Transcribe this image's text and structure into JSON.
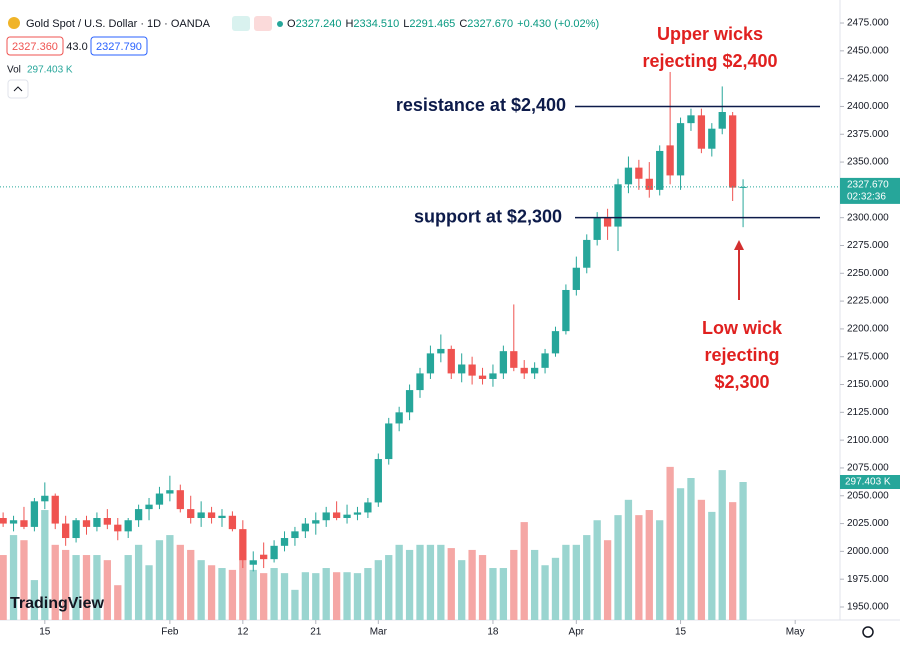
{
  "chart_data": {
    "type": "candlestick",
    "title": "Gold Spot / U.S. Dollar · 1D · OANDA",
    "ohlc_legend": [
      {
        "key": "O",
        "text": "2327.240"
      },
      {
        "key": "H",
        "text": "2334.510"
      },
      {
        "key": "L",
        "text": "2291.465"
      },
      {
        "key": "C",
        "text": "2327.670"
      }
    ],
    "change": "+0.430 (+0.02%)",
    "bid": "2327.360",
    "spread": "43.0",
    "ask": "2327.790",
    "volume_label": "Vol",
    "volume_value_label": "297.403 K",
    "last_price_label": "2327.670",
    "countdown": "02:32:36",
    "watermark": "TradingView",
    "up_color": "#26a69a",
    "down_color": "#ef5350",
    "volume_up_color": "#9ad5d0",
    "volume_down_color": "#f5a7a5",
    "open": [
      2030,
      2025,
      2028,
      2022,
      2045,
      2050,
      2025,
      2012,
      2028,
      2022,
      2030,
      2024,
      2018,
      2028,
      2038,
      2042,
      2052,
      2055,
      2038,
      2030,
      2035,
      2030,
      2032,
      2020,
      1988,
      1997,
      1993,
      2005,
      2012,
      2018,
      2025,
      2028,
      2035,
      2030,
      2033,
      2035,
      2044,
      2083,
      2115,
      2125,
      2145,
      2160,
      2178,
      2182,
      2160,
      2168,
      2158,
      2155,
      2160,
      2180,
      2165,
      2160,
      2165,
      2178,
      2198,
      2235,
      2255,
      2280,
      2300,
      2292,
      2330,
      2345,
      2335,
      2325,
      2365,
      2338,
      2385,
      2392,
      2362,
      2380,
      2392,
      2327.24
    ],
    "high": [
      2035,
      2032,
      2040,
      2048,
      2062,
      2052,
      2032,
      2030,
      2032,
      2035,
      2038,
      2030,
      2030,
      2042,
      2048,
      2058,
      2068,
      2060,
      2050,
      2045,
      2040,
      2038,
      2036,
      2028,
      2000,
      2008,
      2010,
      2018,
      2022,
      2030,
      2035,
      2040,
      2045,
      2042,
      2040,
      2048,
      2088,
      2120,
      2130,
      2150,
      2165,
      2185,
      2195,
      2185,
      2178,
      2175,
      2165,
      2168,
      2185,
      2222,
      2172,
      2170,
      2182,
      2202,
      2240,
      2265,
      2285,
      2305,
      2308,
      2335,
      2355,
      2352,
      2350,
      2365,
      2431,
      2390,
      2398,
      2398,
      2385,
      2418,
      2395,
      2334.51
    ],
    "low": [
      2022,
      2018,
      2020,
      2018,
      2038,
      2020,
      2005,
      2008,
      2015,
      2018,
      2020,
      2010,
      2012,
      2022,
      2028,
      2038,
      2045,
      2035,
      2025,
      2022,
      2025,
      2022,
      2018,
      1985,
      1982,
      1985,
      1990,
      2000,
      2005,
      2012,
      2015,
      2022,
      2028,
      2025,
      2028,
      2030,
      2040,
      2078,
      2108,
      2118,
      2138,
      2155,
      2170,
      2155,
      2152,
      2150,
      2150,
      2148,
      2155,
      2162,
      2155,
      2155,
      2160,
      2175,
      2195,
      2230,
      2250,
      2275,
      2280,
      2270,
      2322,
      2325,
      2318,
      2320,
      2330,
      2325,
      2378,
      2358,
      2355,
      2375,
      2315,
      2291.465
    ],
    "close": [
      2025,
      2028,
      2022,
      2045,
      2050,
      2025,
      2012,
      2028,
      2022,
      2030,
      2024,
      2018,
      2028,
      2038,
      2042,
      2052,
      2055,
      2038,
      2030,
      2035,
      2030,
      2032,
      2020,
      1992,
      1992,
      1993,
      2005,
      2012,
      2018,
      2025,
      2028,
      2035,
      2030,
      2033,
      2035,
      2044,
      2083,
      2115,
      2125,
      2145,
      2160,
      2178,
      2182,
      2160,
      2168,
      2158,
      2155,
      2160,
      2180,
      2165,
      2160,
      2165,
      2178,
      2198,
      2235,
      2255,
      2280,
      2300,
      2292,
      2330,
      2345,
      2335,
      2325,
      2360,
      2338,
      2385,
      2392,
      2362,
      2380,
      2395,
      2327,
      2327.67
    ],
    "volume": [
      140,
      183,
      172,
      86,
      237,
      162,
      151,
      140,
      140,
      140,
      129,
      75,
      140,
      162,
      118,
      172,
      183,
      162,
      151,
      129,
      118,
      112,
      108,
      129,
      108,
      101,
      112,
      101,
      65,
      103,
      101,
      112,
      103,
      103,
      101,
      112,
      129,
      140,
      162,
      151,
      162,
      162,
      162,
      155,
      129,
      151,
      140,
      112,
      112,
      151,
      211,
      151,
      118,
      134,
      162,
      162,
      183,
      215,
      172,
      226,
      259,
      226,
      237,
      215,
      330,
      284,
      306,
      259,
      233,
      323,
      254,
      297.403
    ],
    "ylim": [
      1938.3,
      2495.7
    ],
    "yticks": [
      {
        "value": 1950,
        "label": "1950.000"
      },
      {
        "value": 1975,
        "label": "1975.000"
      },
      {
        "value": 2000,
        "label": "2000.000"
      },
      {
        "value": 2025,
        "label": "2025.000"
      },
      {
        "value": 2050,
        "label": "2050.000"
      },
      {
        "value": 2075,
        "label": "2075.000"
      },
      {
        "value": 2100,
        "label": "2100.000"
      },
      {
        "value": 2125,
        "label": "2125.000"
      },
      {
        "value": 2150,
        "label": "2150.000"
      },
      {
        "value": 2175,
        "label": "2175.000"
      },
      {
        "value": 2200,
        "label": "2200.000"
      },
      {
        "value": 2225,
        "label": "2225.000"
      },
      {
        "value": 2250,
        "label": "2250.000"
      },
      {
        "value": 2275,
        "label": "2275.000"
      },
      {
        "value": 2300,
        "label": "2300.000"
      },
      {
        "value": 2325,
        "label": "2325.000"
      },
      {
        "value": 2350,
        "label": "2350.000"
      },
      {
        "value": 2375,
        "label": "2375.000"
      },
      {
        "value": 2400,
        "label": "2400.000"
      },
      {
        "value": 2425,
        "label": "2425.000"
      },
      {
        "value": 2450,
        "label": "2450.000"
      },
      {
        "value": 2475,
        "label": "2475.000"
      }
    ],
    "xlim": [
      -0.3,
      80.3
    ],
    "xticks": [
      {
        "value": 4,
        "label": "15"
      },
      {
        "value": 16,
        "label": "Feb"
      },
      {
        "value": 23,
        "label": "12"
      },
      {
        "value": 30,
        "label": "21"
      },
      {
        "value": 36,
        "label": "Mar"
      },
      {
        "value": 47,
        "label": "18"
      },
      {
        "value": 55,
        "label": "Apr"
      },
      {
        "value": 65,
        "label": "15"
      },
      {
        "value": 76,
        "label": "May"
      }
    ],
    "hlines": [
      {
        "value": 2400,
        "label": "resistance at $2,400"
      },
      {
        "value": 2300,
        "label": "support at $2,300"
      }
    ],
    "annotations": [
      {
        "lines": [
          "Upper wicks",
          "rejecting $2,400"
        ]
      },
      {
        "lines": [
          "Low wick",
          "rejecting",
          "$2,300"
        ]
      }
    ]
  }
}
